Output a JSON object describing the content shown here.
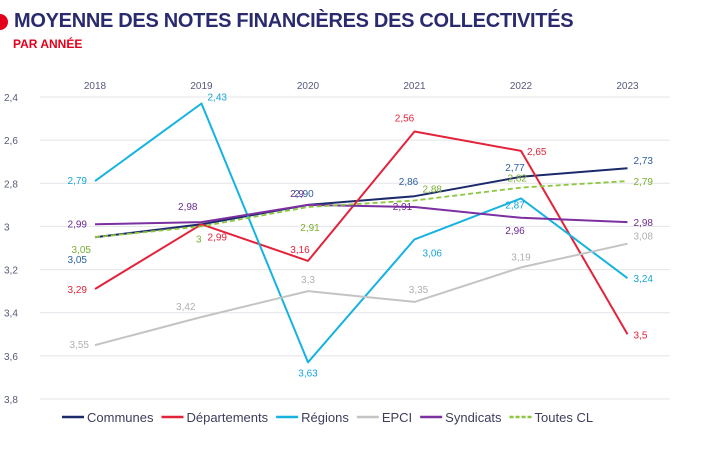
{
  "header": {
    "title": "MOYENNE DES NOTES FINANCIÈRES DES COLLECTIVITÉS",
    "subtitle": "PAR ANNÉE"
  },
  "chart_data": {
    "type": "line",
    "title": "MOYENNE DES NOTES FINANCIÈRES DES COLLECTIVITÉS",
    "subtitle": "PAR ANNÉE",
    "x": [
      "2018",
      "2019",
      "2020",
      "2021",
      "2022",
      "2023"
    ],
    "x_axis_position": "top",
    "y_axis": {
      "reversed": true,
      "range": [
        2.4,
        3.8
      ],
      "ticks": [
        "2,4",
        "2,6",
        "2,8",
        "3",
        "3,2",
        "3,4",
        "3,6",
        "3,8"
      ]
    },
    "grid": true,
    "legend_position": "bottom",
    "series": [
      {
        "name": "Communes",
        "color": "#1b2a6b",
        "dash": false,
        "values": [
          3.05,
          2.99,
          2.9,
          2.86,
          2.77,
          2.73
        ],
        "labels": [
          "3,05",
          "",
          "2,90",
          "2,86",
          "2,77",
          "2,73"
        ],
        "label_color": "#2a5fa0"
      },
      {
        "name": "Départements",
        "color": "#e2233a",
        "dash": false,
        "values": [
          3.29,
          2.99,
          3.16,
          2.56,
          2.65,
          3.5
        ],
        "labels": [
          "3,29",
          "2,99",
          "3,16",
          "2,56",
          "2,65",
          "3,5"
        ],
        "label_color": "#e2233a"
      },
      {
        "name": "Régions",
        "color": "#16b3e0",
        "dash": false,
        "values": [
          2.79,
          2.43,
          3.63,
          3.06,
          2.87,
          3.24
        ],
        "labels": [
          "2,79",
          "2,43",
          "3,63",
          "3,06",
          "2,87",
          "3,24"
        ],
        "label_color": "#16a6d6"
      },
      {
        "name": "EPCI",
        "color": "#c4c4c4",
        "dash": false,
        "values": [
          3.55,
          3.42,
          3.3,
          3.35,
          3.19,
          3.08
        ],
        "labels": [
          "3,55",
          "3,42",
          "3,3",
          "3,35",
          "3,19",
          "3,08"
        ],
        "label_color": "#b0b0b0"
      },
      {
        "name": "Syndicats",
        "color": "#7b2fa0",
        "dash": false,
        "values": [
          2.99,
          2.98,
          2.9,
          2.91,
          2.96,
          2.98
        ],
        "labels": [
          "2,99",
          "2,98",
          "2,9",
          "2,91",
          "2,96",
          "2,98"
        ],
        "label_color": "#6b2a8f"
      },
      {
        "name": "Toutes CL",
        "color": "#8dc63f",
        "dash": true,
        "values": [
          3.05,
          3.0,
          2.91,
          2.88,
          2.82,
          2.79
        ],
        "labels": [
          "3,05",
          "3",
          "2,91",
          "2,88",
          "2,82",
          "2,79"
        ],
        "label_color": "#7ab030"
      }
    ]
  }
}
